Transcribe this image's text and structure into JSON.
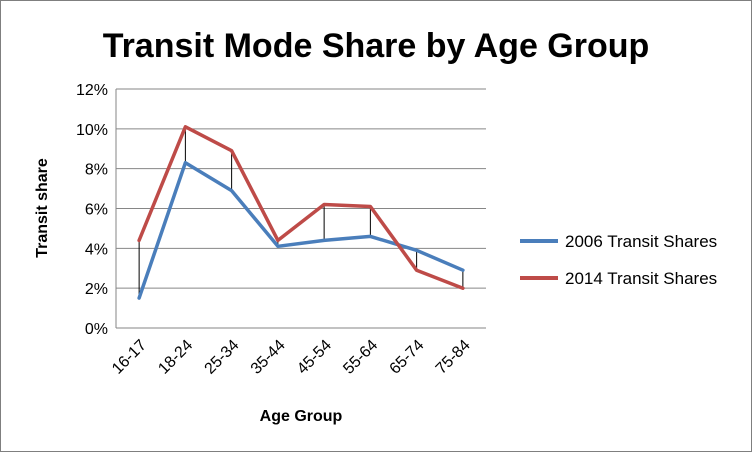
{
  "colors": {
    "series_2006": "#4a7ebb",
    "series_2014": "#be4b48",
    "grid": "#868686",
    "droplines": "#000000"
  },
  "chart_data": {
    "type": "line",
    "title": "Transit Mode Share by Age Group",
    "xlabel": "Age Group",
    "ylabel": "Transit share",
    "categories": [
      "16-17",
      "18-24",
      "25-34",
      "35-44",
      "45-54",
      "55-64",
      "65-74",
      "75-84"
    ],
    "ylim": [
      0,
      12
    ],
    "yticks": [
      0,
      2,
      4,
      6,
      8,
      10,
      12
    ],
    "ytick_labels": [
      "0%",
      "2%",
      "4%",
      "6%",
      "8%",
      "10%",
      "12%"
    ],
    "grid": true,
    "legend_position": "right",
    "drop_lines": true,
    "series": [
      {
        "name": "2006 Transit Shares",
        "values": [
          1.5,
          8.3,
          6.9,
          4.1,
          4.4,
          4.6,
          3.9,
          2.9
        ]
      },
      {
        "name": "2014 Transit Shares",
        "values": [
          4.4,
          10.1,
          8.9,
          4.4,
          6.2,
          6.1,
          2.9,
          2.0
        ]
      }
    ]
  }
}
